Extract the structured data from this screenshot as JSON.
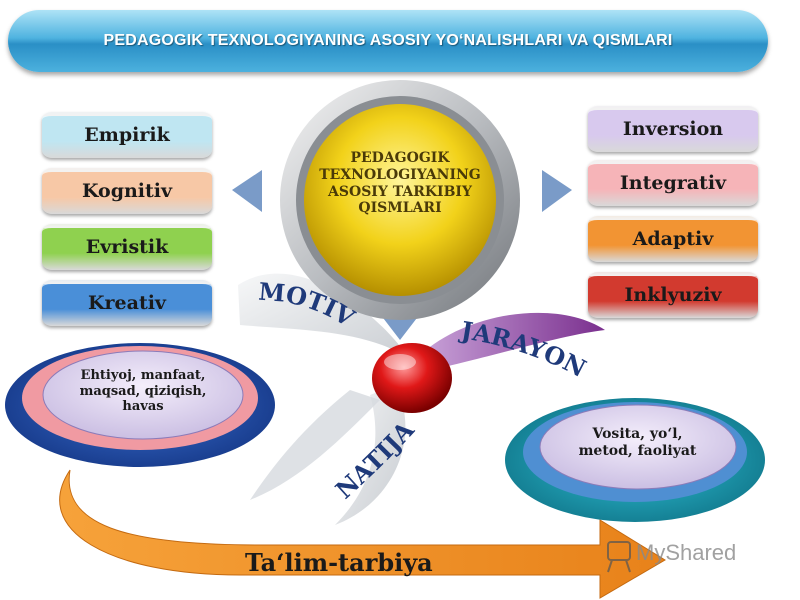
{
  "title": "PEDAGOGIK TEXNOLOGIYANING ASOSIY YO‘NALISHLARI VA QISMLARI",
  "center": {
    "lines": [
      "PEDAGOGIK",
      "TEXNOLOGIYANING",
      "ASOSIY TARKIBIY",
      "QISMLARI"
    ]
  },
  "left_items": [
    {
      "label": "Empirik",
      "color": "#bfe6f2"
    },
    {
      "label": "Kognitiv",
      "color": "#f7c8a6"
    },
    {
      "label": "Evristik",
      "color": "#8fd14f"
    },
    {
      "label": "Kreativ",
      "color": "#4a8fd8"
    }
  ],
  "right_items": [
    {
      "label": "Inversion",
      "color": "#d8c9ee"
    },
    {
      "label": "Integrativ",
      "color": "#f6b4b8"
    },
    {
      "label": "Adaptiv",
      "color": "#f29433"
    },
    {
      "label": "Inklyuziv",
      "color": "#d23a2f"
    }
  ],
  "motiv": "MOTIV",
  "jarayon": "JARAYON",
  "natija": "NATIJA",
  "motiv_detail": [
    "Ehtiyoj, manfaat,",
    "maqsad, qiziqish,",
    "havas"
  ],
  "jarayon_detail": [
    "Vosita, yo‘l,",
    "metod, faoliyat"
  ],
  "result": "Ta‘lim-tarbiya",
  "watermark": "MyShared"
}
